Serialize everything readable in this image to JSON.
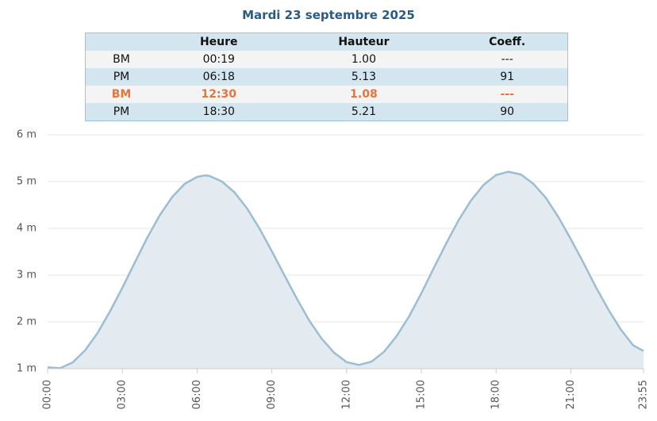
{
  "title": "Mardi 23 septembre 2025",
  "table": {
    "header": [
      "Heure",
      "Hauteur",
      "Coeff."
    ],
    "rows": [
      [
        "BM",
        "00:19",
        "1.00",
        "---"
      ],
      [
        "PM",
        "06:18",
        "5.13",
        "91"
      ],
      [
        "BM",
        "12:30",
        "1.08",
        "---"
      ],
      [
        "PM",
        "18:30",
        "5.21",
        "90"
      ]
    ],
    "highlight_row": 2,
    "highlight_color": "#e8743b"
  },
  "chart_data": {
    "type": "area",
    "color": "#9bbdd3",
    "fill": "#e3ebf0",
    "x": [
      0,
      30,
      60,
      90,
      120,
      150,
      180,
      210,
      240,
      270,
      300,
      330,
      360,
      378,
      390,
      420,
      450,
      480,
      510,
      540,
      570,
      600,
      630,
      660,
      690,
      720,
      750,
      780,
      810,
      840,
      870,
      900,
      930,
      960,
      990,
      1020,
      1050,
      1080,
      1110,
      1140,
      1170,
      1200,
      1230,
      1260,
      1290,
      1320,
      1350,
      1380,
      1410,
      1435
    ],
    "values": [
      1.03,
      1.01,
      1.13,
      1.39,
      1.76,
      2.22,
      2.73,
      3.27,
      3.8,
      4.28,
      4.67,
      4.95,
      5.1,
      5.13,
      5.12,
      5.0,
      4.77,
      4.43,
      4.0,
      3.51,
      3.0,
      2.5,
      2.03,
      1.64,
      1.34,
      1.14,
      1.08,
      1.15,
      1.36,
      1.69,
      2.11,
      2.61,
      3.15,
      3.68,
      4.18,
      4.6,
      4.93,
      5.14,
      5.21,
      5.15,
      4.95,
      4.65,
      4.24,
      3.77,
      3.27,
      2.75,
      2.27,
      1.84,
      1.5,
      1.38
    ],
    "xlim": [
      0,
      1435
    ],
    "xticks": [
      {
        "value": 0,
        "label": "00:00"
      },
      {
        "value": 180,
        "label": "03:00"
      },
      {
        "value": 360,
        "label": "06:00"
      },
      {
        "value": 540,
        "label": "09:00"
      },
      {
        "value": 720,
        "label": "12:00"
      },
      {
        "value": 900,
        "label": "15:00"
      },
      {
        "value": 1080,
        "label": "18:00"
      },
      {
        "value": 1260,
        "label": "21:00"
      },
      {
        "value": 1435,
        "label": "23:55"
      }
    ],
    "ylim": [
      1,
      6
    ],
    "yticks": [
      {
        "value": 1,
        "label": "1 m"
      },
      {
        "value": 2,
        "label": "2 m"
      },
      {
        "value": 3,
        "label": "3 m"
      },
      {
        "value": 4,
        "label": "4 m"
      },
      {
        "value": 5,
        "label": "5 m"
      },
      {
        "value": 6,
        "label": "6 m"
      }
    ],
    "grid": true
  }
}
